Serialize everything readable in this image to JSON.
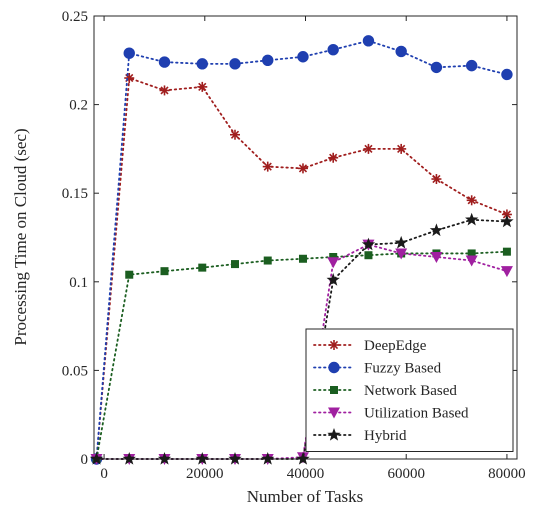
{
  "chart_data": {
    "type": "line",
    "title": "",
    "xlabel": "Number of Tasks",
    "ylabel": "Processing Time on Cloud (sec)",
    "xlim": [
      -2000,
      82000
    ],
    "ylim": [
      0,
      0.25
    ],
    "xticks": [
      0,
      20000,
      40000,
      60000,
      80000
    ],
    "yticks": [
      0,
      0.05,
      0.1,
      0.15,
      0.2,
      0.25
    ],
    "xtick_labels": [
      "0",
      "20000",
      "40000",
      "60000",
      "80000"
    ],
    "ytick_labels": [
      "0",
      "0.05",
      "0.1",
      "0.15",
      "0.2",
      "0.25"
    ],
    "grid": false,
    "legend_position": "bottom-right",
    "x": [
      -1500,
      5000,
      12000,
      19500,
      26000,
      32500,
      39500,
      45500,
      52500,
      59000,
      66000,
      73000,
      80000
    ],
    "series": [
      {
        "name": "DeepEdge",
        "color": "#a01e1e",
        "marker": "asterisk",
        "values": [
          0,
          0.215,
          0.208,
          0.21,
          0.183,
          0.165,
          0.164,
          0.17,
          0.175,
          0.175,
          0.158,
          0.146,
          0.138
        ]
      },
      {
        "name": "Fuzzy Based",
        "color": "#1f3fb0",
        "marker": "circle",
        "values": [
          0,
          0.229,
          0.224,
          0.223,
          0.223,
          0.225,
          0.227,
          0.231,
          0.236,
          0.23,
          0.221,
          0.222,
          0.217
        ]
      },
      {
        "name": "Network Based",
        "color": "#1b5e20",
        "marker": "square",
        "values": [
          0,
          0.104,
          0.106,
          0.108,
          0.11,
          0.112,
          0.113,
          0.114,
          0.115,
          0.116,
          0.116,
          0.116,
          0.117
        ]
      },
      {
        "name": "Utilization Based",
        "color": "#a020a0",
        "marker": "triangle-down",
        "values": [
          0,
          0,
          0,
          0,
          0,
          0,
          0.001,
          0.111,
          0.121,
          0.116,
          0.114,
          0.112,
          0.106
        ]
      },
      {
        "name": "Hybrid",
        "color": "#1a1a1a",
        "marker": "star",
        "values": [
          0,
          0,
          0,
          0,
          0,
          0,
          0,
          0.101,
          0.121,
          0.122,
          0.129,
          0.135,
          0.134
        ]
      }
    ]
  }
}
